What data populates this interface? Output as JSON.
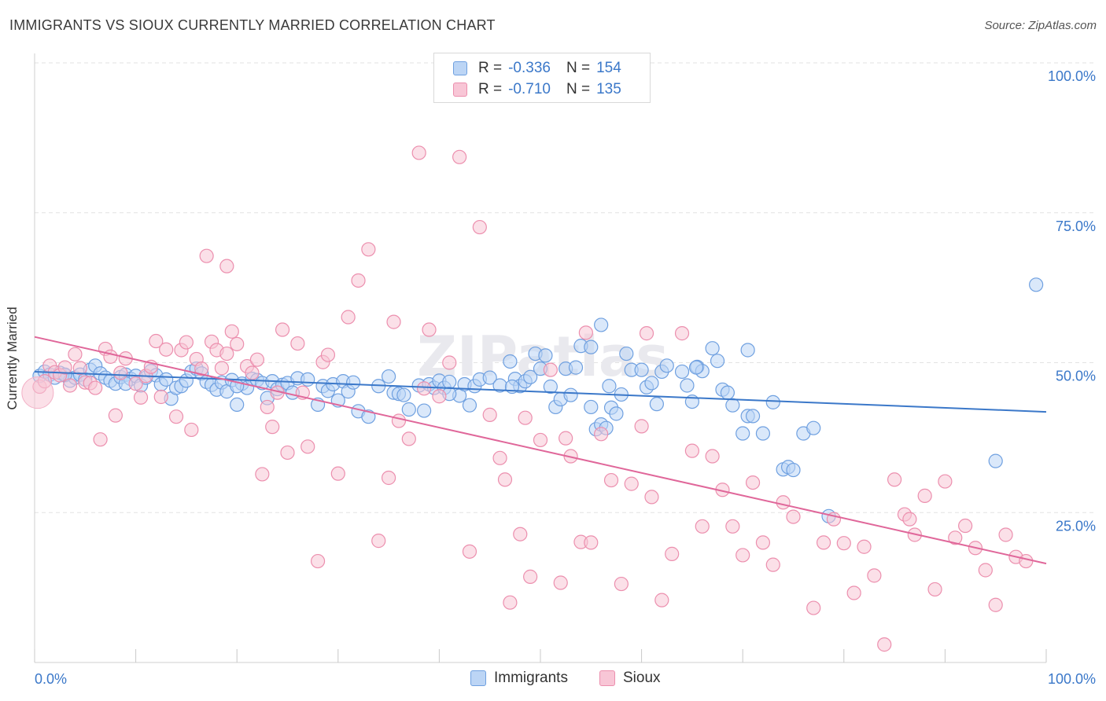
{
  "header": {
    "title": "IMMIGRANTS VS SIOUX CURRENTLY MARRIED CORRELATION CHART",
    "source": "Source: ZipAtlas.com"
  },
  "legend": {
    "rows": [
      {
        "r_label": "R =",
        "r_value": "-0.336",
        "n_label": "N =",
        "n_value": "154",
        "color": "#6fa0e0",
        "fill": "#bcd5f5"
      },
      {
        "r_label": "R =",
        "r_value": "-0.710",
        "n_label": "N =",
        "n_value": "135",
        "color": "#ec8fae",
        "fill": "#f8c6d6"
      }
    ]
  },
  "bottom_legend": {
    "immigrants": "Immigrants",
    "sioux": "Sioux"
  },
  "chart_data": {
    "type": "scatter",
    "title": "IMMIGRANTS VS SIOUX CURRENTLY MARRIED CORRELATION CHART",
    "xlabel": "",
    "ylabel": "Currently Married",
    "xlim": [
      0,
      100
    ],
    "ylim": [
      0,
      102
    ],
    "x_tick_labels": [
      "0.0%",
      "100.0%"
    ],
    "y_tick_labels": [
      "25.0%",
      "50.0%",
      "75.0%",
      "100.0%"
    ],
    "y_ticks": [
      25,
      50,
      75,
      100
    ],
    "grid": true,
    "watermark": "ZIPatlas",
    "series": [
      {
        "name": "Immigrants",
        "color": "#3b78c9",
        "fill": "#bcd5f5",
        "stroke": "#6fa0e0",
        "trend": [
          [
            0,
            48.5
          ],
          [
            100,
            41.8
          ]
        ],
        "points": [
          [
            0.5,
            47.8
          ],
          [
            1,
            48.5
          ],
          [
            1.5,
            48
          ],
          [
            2,
            47.5
          ],
          [
            2.5,
            48.3
          ],
          [
            3,
            47.9
          ],
          [
            3.5,
            47
          ],
          [
            4,
            47.5
          ],
          [
            4.5,
            48
          ],
          [
            5,
            47.2
          ],
          [
            5.5,
            48.8
          ],
          [
            6,
            49.5
          ],
          [
            6.5,
            48.2
          ],
          [
            7,
            47.5
          ],
          [
            7.5,
            47
          ],
          [
            8,
            46.5
          ],
          [
            8.5,
            47.6
          ],
          [
            9,
            48
          ],
          [
            9.5,
            47.3
          ],
          [
            10,
            47.8
          ],
          [
            10.5,
            46.2
          ],
          [
            11,
            47.5
          ],
          [
            11.5,
            48.6
          ],
          [
            12,
            47.9
          ],
          [
            12.5,
            46.4
          ],
          [
            13,
            47.2
          ],
          [
            13.5,
            44
          ],
          [
            14,
            45.8
          ],
          [
            14.5,
            46.1
          ],
          [
            15,
            47
          ],
          [
            15.5,
            48.5
          ],
          [
            16,
            49
          ],
          [
            16.5,
            48.2
          ],
          [
            17,
            46.8
          ],
          [
            17.5,
            46.3
          ],
          [
            18,
            45.5
          ],
          [
            18.5,
            46.7
          ],
          [
            19,
            45.2
          ],
          [
            19.5,
            47.1
          ],
          [
            20,
            43
          ],
          [
            20.5,
            46.5
          ],
          [
            21,
            45.8
          ],
          [
            21.5,
            47.3
          ],
          [
            22,
            47.1
          ],
          [
            22.5,
            46.6
          ],
          [
            23,
            44.1
          ],
          [
            23.5,
            46.9
          ],
          [
            24,
            45.6
          ],
          [
            24.5,
            46.3
          ],
          [
            25,
            46.6
          ],
          [
            25.5,
            45
          ],
          [
            26,
            47.4
          ],
          [
            27,
            47.2
          ],
          [
            28,
            43
          ],
          [
            28.5,
            46.1
          ],
          [
            29,
            45.3
          ],
          [
            29.5,
            46.4
          ],
          [
            30,
            43.7
          ],
          [
            30.5,
            46.9
          ],
          [
            31,
            45.2
          ],
          [
            31.5,
            46.7
          ],
          [
            32,
            41.9
          ],
          [
            33,
            41
          ],
          [
            34,
            46.1
          ],
          [
            35,
            47.7
          ],
          [
            35.5,
            45
          ],
          [
            36,
            44.8
          ],
          [
            37,
            42.2
          ],
          [
            38,
            46.2
          ],
          [
            38.5,
            42
          ],
          [
            39,
            46.4
          ],
          [
            39.5,
            45.8
          ],
          [
            40,
            47
          ],
          [
            40.5,
            45.8
          ],
          [
            41,
            46.8
          ],
          [
            42,
            44.5
          ],
          [
            42.5,
            46.4
          ],
          [
            43,
            42.9
          ],
          [
            43.5,
            46.1
          ],
          [
            44,
            47.2
          ],
          [
            45,
            47.5
          ],
          [
            46,
            46.2
          ],
          [
            47,
            50.2
          ],
          [
            47.5,
            47.3
          ],
          [
            48,
            46.1
          ],
          [
            48.5,
            46.9
          ],
          [
            49,
            47.6
          ],
          [
            49.5,
            51.5
          ],
          [
            50,
            49
          ],
          [
            50.5,
            51.2
          ],
          [
            51,
            46
          ],
          [
            51.5,
            42.6
          ],
          [
            52,
            43.9
          ],
          [
            52.5,
            49
          ],
          [
            53,
            44.6
          ],
          [
            53.5,
            49.2
          ],
          [
            54,
            52.8
          ],
          [
            55,
            42.6
          ],
          [
            55.5,
            38.9
          ],
          [
            56,
            39.7
          ],
          [
            56.5,
            39.1
          ],
          [
            57,
            42.5
          ],
          [
            57.5,
            41.5
          ],
          [
            58,
            44.7
          ],
          [
            58.5,
            51.5
          ],
          [
            59,
            48.8
          ],
          [
            60,
            48.8
          ],
          [
            60.5,
            45.9
          ],
          [
            61,
            46.6
          ],
          [
            61.5,
            43.1
          ],
          [
            62,
            48.5
          ],
          [
            62.5,
            49.5
          ],
          [
            64,
            48.5
          ],
          [
            64.5,
            46.2
          ],
          [
            65,
            43.5
          ],
          [
            65.5,
            49.3
          ],
          [
            66,
            48.6
          ],
          [
            67,
            52.4
          ],
          [
            67.5,
            50.3
          ],
          [
            68,
            45.5
          ],
          [
            68.5,
            45
          ],
          [
            69,
            42.9
          ],
          [
            70,
            38.2
          ],
          [
            70.5,
            41.1
          ],
          [
            71,
            41.1
          ],
          [
            72,
            38.2
          ],
          [
            73,
            43.4
          ],
          [
            74,
            32.2
          ],
          [
            74.5,
            32.6
          ],
          [
            75,
            32.1
          ],
          [
            76,
            38.2
          ],
          [
            77,
            39.1
          ],
          [
            78.5,
            24.4
          ],
          [
            56,
            56.3
          ],
          [
            55,
            52.6
          ],
          [
            70.5,
            52.1
          ],
          [
            99,
            63
          ],
          [
            95,
            33.6
          ],
          [
            41,
            44.8
          ],
          [
            36.5,
            44.6
          ],
          [
            47.2,
            46
          ],
          [
            56.8,
            46.1
          ],
          [
            65.4,
            49.2
          ],
          [
            20,
            46.1
          ],
          [
            9,
            46.5
          ],
          [
            3,
            48
          ]
        ]
      },
      {
        "name": "Sioux",
        "color": "#e0679a",
        "fill": "#f8c6d6",
        "stroke": "#ec8fae",
        "trend": [
          [
            0,
            54.3
          ],
          [
            100,
            16.5
          ]
        ],
        "points": [
          [
            0.5,
            46
          ],
          [
            1,
            46.9
          ],
          [
            1.5,
            49.5
          ],
          [
            2,
            48.4
          ],
          [
            2.5,
            47.9
          ],
          [
            3,
            49.2
          ],
          [
            3.5,
            46.2
          ],
          [
            4,
            51.4
          ],
          [
            4.5,
            49.1
          ],
          [
            5,
            46.7
          ],
          [
            5.5,
            46.6
          ],
          [
            6,
            45.8
          ],
          [
            6.5,
            37.2
          ],
          [
            7,
            52.3
          ],
          [
            7.5,
            51
          ],
          [
            8,
            41.2
          ],
          [
            8.5,
            48.3
          ],
          [
            9,
            50.7
          ],
          [
            10,
            46.5
          ],
          [
            10.5,
            44.2
          ],
          [
            11,
            47.8
          ],
          [
            11.5,
            49.3
          ],
          [
            12,
            53.6
          ],
          [
            12.5,
            44.3
          ],
          [
            13,
            52.2
          ],
          [
            14,
            41
          ],
          [
            14.5,
            52.1
          ],
          [
            15,
            53.4
          ],
          [
            15.5,
            38.8
          ],
          [
            16,
            50.6
          ],
          [
            16.5,
            49
          ],
          [
            17,
            67.8
          ],
          [
            17.5,
            53.5
          ],
          [
            18,
            52.1
          ],
          [
            18.5,
            49.1
          ],
          [
            19,
            66.1
          ],
          [
            19.5,
            55.2
          ],
          [
            20,
            53.1
          ],
          [
            21,
            49.4
          ],
          [
            21.5,
            48.3
          ],
          [
            22,
            50.5
          ],
          [
            22.5,
            31.4
          ],
          [
            23,
            42.6
          ],
          [
            23.5,
            39.3
          ],
          [
            24,
            45
          ],
          [
            24.5,
            55.5
          ],
          [
            25,
            35
          ],
          [
            26,
            53.2
          ],
          [
            26.5,
            45
          ],
          [
            27,
            36
          ],
          [
            28,
            16.9
          ],
          [
            28.5,
            50.1
          ],
          [
            29,
            51.3
          ],
          [
            30,
            31.5
          ],
          [
            31,
            57.6
          ],
          [
            32,
            63.7
          ],
          [
            33,
            68.9
          ],
          [
            34,
            20.3
          ],
          [
            35,
            30.8
          ],
          [
            35.5,
            56.8
          ],
          [
            36,
            40.3
          ],
          [
            37,
            37.3
          ],
          [
            38,
            85
          ],
          [
            38.5,
            45.7
          ],
          [
            39,
            55.5
          ],
          [
            40,
            44.4
          ],
          [
            41,
            50
          ],
          [
            42,
            84.3
          ],
          [
            43,
            18.5
          ],
          [
            44,
            72.6
          ],
          [
            45,
            41.3
          ],
          [
            46,
            34.1
          ],
          [
            46.5,
            30.5
          ],
          [
            47,
            10
          ],
          [
            48,
            21.4
          ],
          [
            48.5,
            40.8
          ],
          [
            49,
            14.3
          ],
          [
            50,
            37.1
          ],
          [
            51,
            48.8
          ],
          [
            52,
            13.3
          ],
          [
            52.5,
            37.4
          ],
          [
            53,
            34.4
          ],
          [
            54,
            20.1
          ],
          [
            54.5,
            55
          ],
          [
            55,
            20
          ],
          [
            56,
            38.1
          ],
          [
            57,
            30.4
          ],
          [
            58,
            13.1
          ],
          [
            59,
            29.8
          ],
          [
            60,
            39.4
          ],
          [
            61,
            27.6
          ],
          [
            62,
            10.4
          ],
          [
            63,
            18.1
          ],
          [
            64,
            54.9
          ],
          [
            65,
            35.3
          ],
          [
            66,
            22.7
          ],
          [
            67,
            34.4
          ],
          [
            68,
            28.8
          ],
          [
            69,
            22.7
          ],
          [
            70,
            17.9
          ],
          [
            71,
            30
          ],
          [
            72,
            20
          ],
          [
            73,
            16.3
          ],
          [
            74,
            26.7
          ],
          [
            75,
            24.3
          ],
          [
            77,
            9.1
          ],
          [
            78,
            20
          ],
          [
            79,
            23.9
          ],
          [
            80,
            19.9
          ],
          [
            81,
            11.6
          ],
          [
            82,
            19.3
          ],
          [
            83,
            14.5
          ],
          [
            84,
            3
          ],
          [
            85,
            30.5
          ],
          [
            86,
            24.7
          ],
          [
            86.5,
            23.9
          ],
          [
            87,
            21.3
          ],
          [
            88,
            27.8
          ],
          [
            89,
            12.2
          ],
          [
            90,
            30.2
          ],
          [
            91,
            20.8
          ],
          [
            92,
            22.8
          ],
          [
            93,
            19.1
          ],
          [
            94,
            15.4
          ],
          [
            95,
            9.6
          ],
          [
            96,
            21.3
          ],
          [
            97,
            17.6
          ],
          [
            98,
            16.9
          ],
          [
            60.5,
            54.9
          ],
          [
            19,
            51.5
          ]
        ]
      }
    ]
  }
}
